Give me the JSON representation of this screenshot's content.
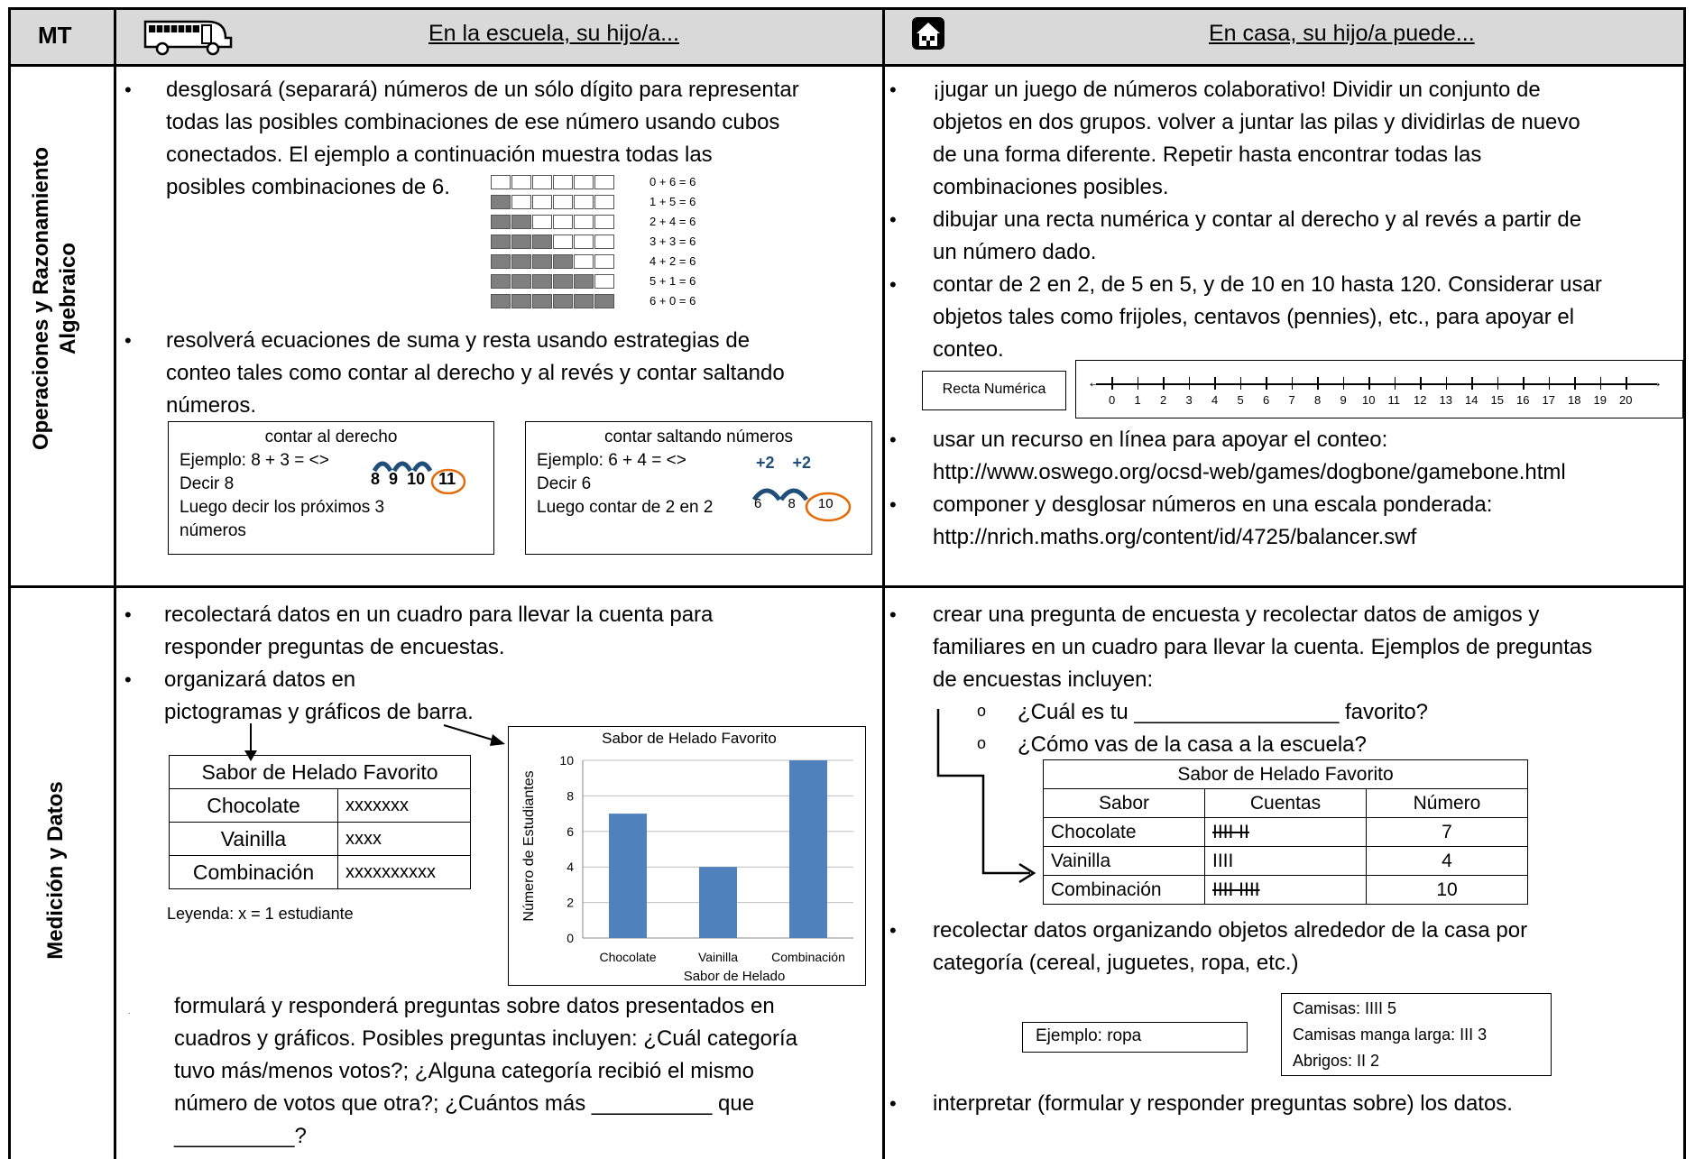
{
  "header": {
    "mt": "MT",
    "school": "En la escuela, su hijo/a...",
    "home": "En casa, su hijo/a puede..."
  },
  "row1": {
    "label_line1": "Operaciones y Razonamiento",
    "label_line2": "Algebraico",
    "school_b1_lines": [
      "desglosará (separará) números de un sólo dígito para representar",
      "todas las posibles combinaciones de ese número usando cubos",
      "conectados.   El ejemplo a continuación muestra todas las",
      "posibles combinaciones de 6."
    ],
    "equations": [
      "0 + 6 = 6",
      "1 + 5 = 6",
      "2 + 4 = 6",
      "3 + 3 = 6",
      "4 + 2 = 6",
      "5 + 1 = 6",
      "6 + 0 = 6"
    ],
    "school_b2_lines": [
      "resolverá ecuaciones de suma y resta usando estrategias de",
      "conteo tales como contar al derecho y al revés y contar saltando",
      "números."
    ],
    "box1": {
      "title": "contar al derecho",
      "l1": "Ejemplo: 8 + 3 = <>",
      "l2": "Decir 8",
      "l3": "Luego decir los próximos 3",
      "l4": "números",
      "n8": "8",
      "n9": "9",
      "n10": "10",
      "n11": "11"
    },
    "box2": {
      "title": "contar saltando números",
      "l1": "Ejemplo: 6 + 4 = <>",
      "l2": "Decir 6",
      "l3": "Luego contar de 2 en 2",
      "p1": "+2",
      "p2": "+2",
      "n6": "6",
      "n8": "8",
      "n10": "10"
    },
    "home_b1_lines": [
      "¡jugar un juego de números colaborativo!  Dividir un conjunto de",
      "objetos en dos grupos. volver a juntar las pilas y dividirlas de nuevo",
      "de una forma diferente. Repetir hasta encontrar todas las",
      "combinaciones posibles."
    ],
    "home_b2_lines": [
      "dibujar una recta numérica y contar al derecho y al revés a partir de",
      "un número dado."
    ],
    "home_b3_lines": [
      "contar de 2 en 2, de 5 en 5, y de 10 en 10 hasta 120. Considerar usar",
      "objetos tales como frijoles, centavos (pennies), etc., para apoyar el",
      "conteo."
    ],
    "recta_label": "Recta Numérica",
    "numberline": [
      "0",
      "1",
      "2",
      "3",
      "4",
      "5",
      "6",
      "7",
      "8",
      "9",
      "10",
      "11",
      "12",
      "13",
      "14",
      "15",
      "16",
      "17",
      "18",
      "19",
      "20"
    ],
    "home_b4_lines": [
      "usar un recurso en línea para apoyar el conteo:",
      "http://www.oswego.org/ocsd-web/games/dogbone/gamebone.html"
    ],
    "home_b5_lines": [
      "componer y desglosar números en una escala ponderada:",
      "http://nrich.maths.org/content/id/4725/balancer.swf"
    ]
  },
  "row2": {
    "label": "Medición y Datos",
    "school_b1_lines": [
      "recolectará datos en un cuadro para llevar la cuenta para",
      "responder preguntas de encuestas."
    ],
    "school_b2_lines": [
      "organizará datos en",
      "pictogramas y gráficos de barra."
    ],
    "picto": {
      "title": "Sabor de Helado Favorito",
      "rows": [
        {
          "flavor": "Chocolate",
          "marks": "xxxxxxx"
        },
        {
          "flavor": "Vainilla",
          "marks": "xxxx"
        },
        {
          "flavor": "Combinación",
          "marks": "xxxxxxxxxx"
        }
      ],
      "legend": "Leyenda: x = 1 estudiante"
    },
    "school_b3_lines": [
      "formulará y responderá preguntas sobre datos presentados en",
      "cuadros y gráficos.  Posibles preguntas incluyen: ¿Cuál categoría",
      "tuvo más/menos votos?; ¿Alguna categoría recibió el mismo",
      "número de votos que otra?; ¿Cuántos más __________ que",
      "__________?"
    ],
    "home_b1_lines": [
      "crear una pregunta de encuesta y recolectar datos de amigos y",
      "familiares en un cuadro para llevar la cuenta. Ejemplos de preguntas",
      "de encuestas incluyen:"
    ],
    "sub1": "¿Cuál es tu _________________ favorito?",
    "sub2": "¿Cómo vas de la casa a la escuela?",
    "tally": {
      "title": "Sabor de Helado Favorito",
      "headers": [
        "Sabor",
        "Cuentas",
        "Número"
      ],
      "rows": [
        {
          "flavor": "Chocolate",
          "marks": "IIII II",
          "num": "7"
        },
        {
          "flavor": "Vainilla",
          "marks": "IIII",
          "num": "4"
        },
        {
          "flavor": "Combinación",
          "marks": "IIII  IIII",
          "num": "10"
        }
      ]
    },
    "home_b2_lines": [
      "recolectar datos organizando objetos alrededor de la casa por",
      "categoría (cereal, juguetes, ropa, etc.)"
    ],
    "ejemplo": "Ejemplo: ropa",
    "camisas": {
      "l1": "Camisas: IIII 5",
      "l2": "Camisas manga larga: III 3",
      "l3": "Abrigos:  II 2"
    },
    "home_b3": "interpretar (formular y responder preguntas sobre) los datos."
  },
  "chart_data": {
    "type": "bar",
    "title": "Sabor de Helado Favorito",
    "categories": [
      "Chocolate",
      "Vainilla",
      "Combinación"
    ],
    "values": [
      7,
      4,
      10
    ],
    "xlabel": "Sabor de Helado",
    "ylabel": "Número de Estudiantes",
    "ylim": [
      0,
      10
    ],
    "yticks": [
      "0",
      "2",
      "4",
      "6",
      "8",
      "10"
    ],
    "bar_color": "#4f81bd",
    "grid": true
  },
  "colors": {
    "header_bg": "#d9d9d9",
    "bar": "#4f81bd",
    "circle": "#e36c09",
    "arc": "#1f4e79"
  }
}
